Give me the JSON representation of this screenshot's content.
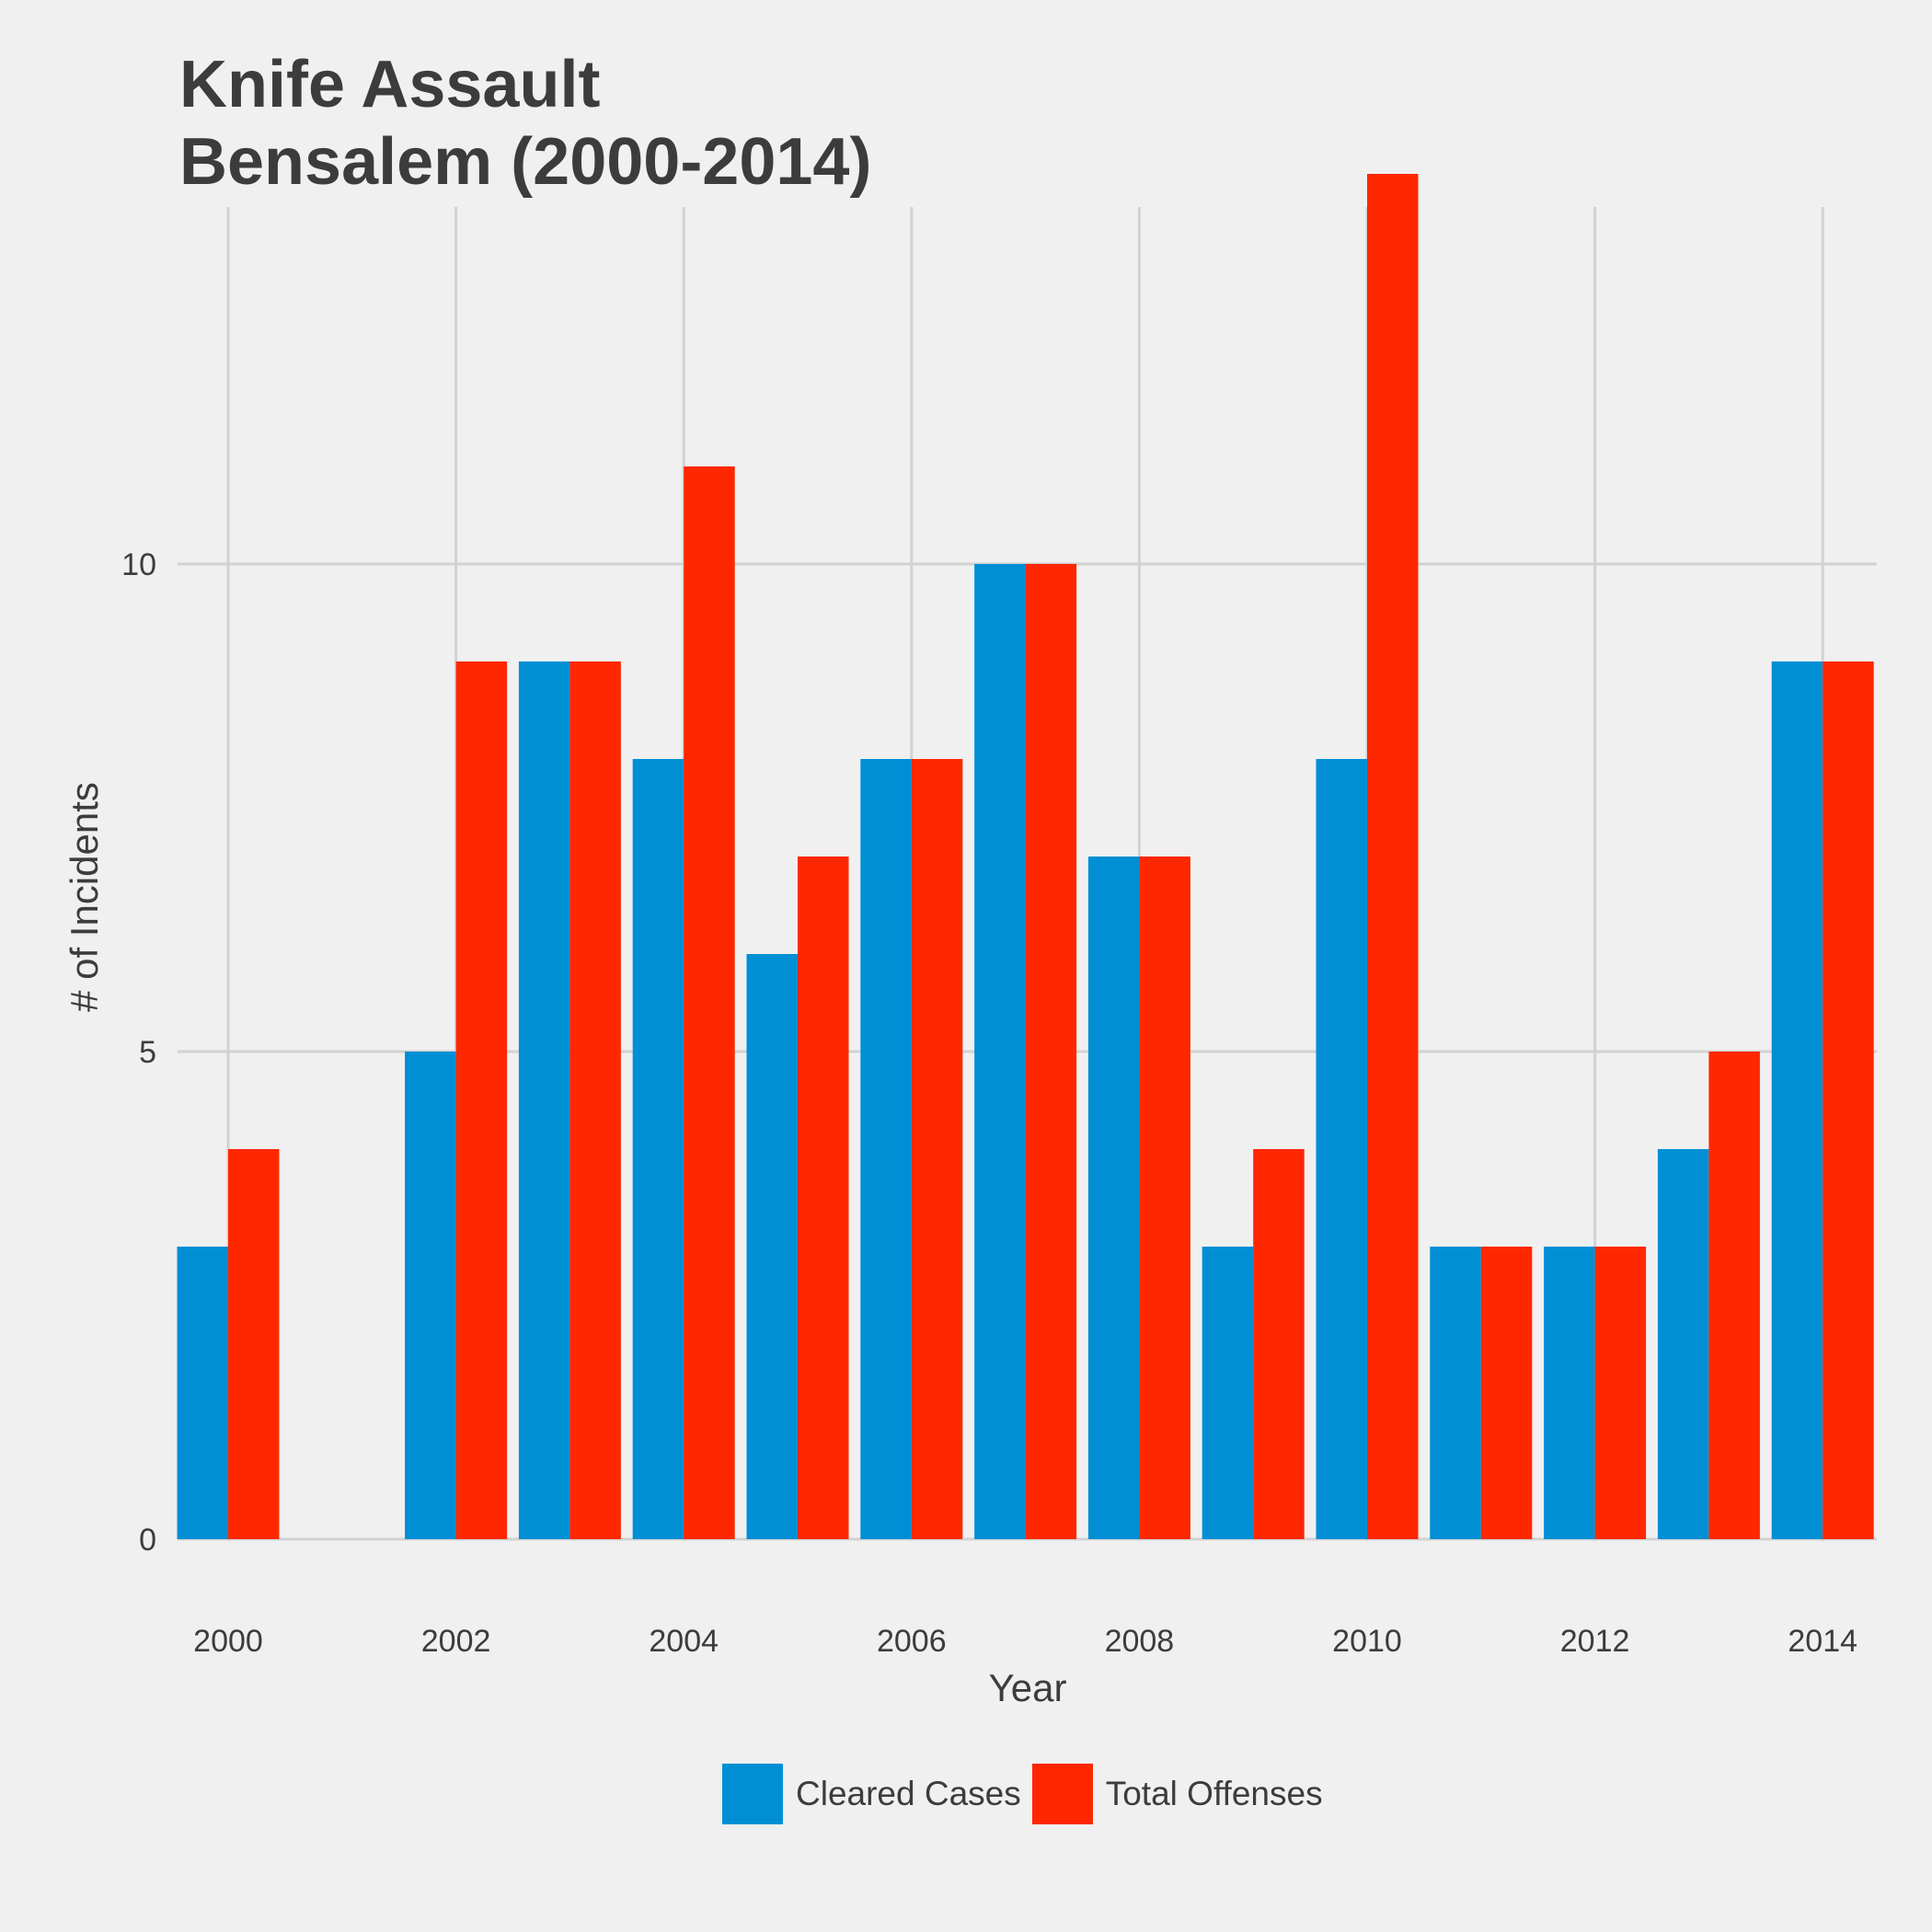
{
  "chart_data": {
    "type": "bar",
    "title": "Knife Assault",
    "subtitle": "Bensalem (2000-2014)",
    "xlabel": "Year",
    "ylabel": "# of Incidents",
    "categories": [
      2000,
      2001,
      2002,
      2003,
      2004,
      2005,
      2006,
      2007,
      2008,
      2009,
      2010,
      2011,
      2012,
      2013,
      2014
    ],
    "x_ticks": [
      "2000",
      "2002",
      "2004",
      "2006",
      "2008",
      "2010",
      "2012",
      "2014"
    ],
    "y_ticks": [
      "0",
      "5",
      "10"
    ],
    "ylim": [
      0,
      14
    ],
    "grid": true,
    "legend_position": "bottom",
    "series": [
      {
        "name": "Cleared Cases",
        "color": "#008fd5",
        "values": [
          3,
          0,
          5,
          9,
          8,
          6,
          8,
          10,
          7,
          3,
          8,
          3,
          3,
          4,
          9
        ]
      },
      {
        "name": "Total Offenses",
        "color": "#ff2700",
        "values": [
          4,
          0,
          9,
          9,
          11,
          7,
          8,
          10,
          7,
          4,
          14,
          3,
          3,
          5,
          9
        ]
      }
    ]
  }
}
